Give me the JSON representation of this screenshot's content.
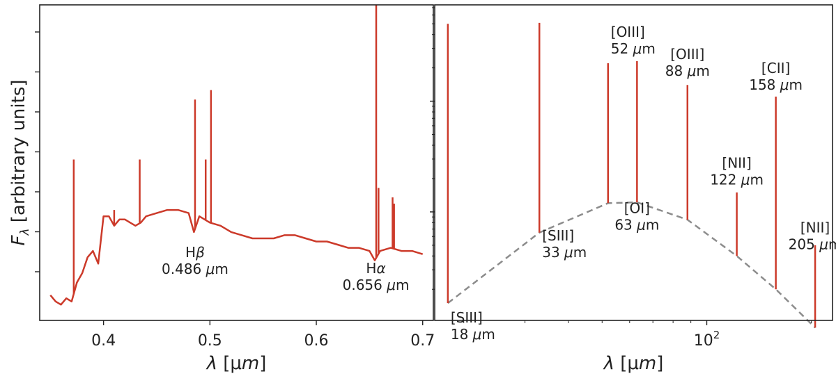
{
  "colors": {
    "spectrum": "#cc3a2a",
    "continuum_dashed": "#8c8c8c",
    "frame": "#222222"
  },
  "chart_data": [
    {
      "type": "line",
      "panel": "left",
      "ylabel": "Fλ [arbitrary units]",
      "xlabel": "λ [μm]",
      "xlim": [
        0.34,
        0.71
      ],
      "ylim": [
        0,
        1
      ],
      "y_tick_labels_shown": false,
      "x_ticks": [
        0.4,
        0.5,
        0.6,
        0.7
      ],
      "x_tick_labels": [
        "0.4",
        "0.5",
        "0.6",
        "0.7"
      ],
      "continuum": {
        "x": [
          0.35,
          0.355,
          0.36,
          0.365,
          0.37,
          0.375,
          0.38,
          0.385,
          0.39,
          0.395,
          0.4,
          0.405,
          0.41,
          0.415,
          0.42,
          0.425,
          0.43,
          0.435,
          0.44,
          0.45,
          0.46,
          0.47,
          0.48,
          0.485,
          0.49,
          0.5,
          0.51,
          0.52,
          0.53,
          0.54,
          0.55,
          0.56,
          0.57,
          0.58,
          0.59,
          0.6,
          0.61,
          0.62,
          0.63,
          0.64,
          0.65,
          0.655,
          0.66,
          0.67,
          0.68,
          0.69,
          0.7
        ],
        "y": [
          0.08,
          0.06,
          0.05,
          0.07,
          0.06,
          0.12,
          0.15,
          0.2,
          0.22,
          0.18,
          0.33,
          0.33,
          0.3,
          0.32,
          0.32,
          0.31,
          0.3,
          0.31,
          0.33,
          0.34,
          0.35,
          0.35,
          0.34,
          0.28,
          0.33,
          0.31,
          0.3,
          0.28,
          0.27,
          0.26,
          0.26,
          0.26,
          0.27,
          0.27,
          0.26,
          0.25,
          0.25,
          0.24,
          0.23,
          0.23,
          0.22,
          0.19,
          0.22,
          0.23,
          0.22,
          0.22,
          0.21
        ]
      },
      "emission_lines": [
        {
          "x": 0.372,
          "peak": 0.51
        },
        {
          "x": 0.41,
          "peak": 0.35
        },
        {
          "x": 0.434,
          "peak": 0.51
        },
        {
          "x": 0.486,
          "peak": 0.7
        },
        {
          "x": 0.496,
          "peak": 0.51
        },
        {
          "x": 0.501,
          "peak": 0.73
        },
        {
          "x": 0.6563,
          "peak": 1.0
        },
        {
          "x": 0.6585,
          "peak": 0.42
        },
        {
          "x": 0.6717,
          "peak": 0.39
        },
        {
          "x": 0.6731,
          "peak": 0.37
        }
      ],
      "annotations": [
        {
          "x": 0.486,
          "y": 0.2,
          "lines": [
            "Hβ",
            "0.486 μm"
          ]
        },
        {
          "x": 0.656,
          "y": 0.15,
          "lines": [
            "Hα",
            "0.656 μm"
          ]
        }
      ]
    },
    {
      "type": "line",
      "panel": "right",
      "xscale": "log",
      "xlabel": "λ [μm]",
      "xlim": [
        16.5,
        230
      ],
      "yscale": "log",
      "ylim_decades": [
        -0.98,
        1.87
      ],
      "y_tick_labels_shown": false,
      "x_ticks": [
        100
      ],
      "x_tick_labels": [
        "10²"
      ],
      "continuum": {
        "x": [
          18,
          33,
          52,
          63,
          88,
          122,
          158,
          205
        ],
        "y": [
          0.15,
          0.65,
          1.2,
          1.22,
          0.85,
          0.4,
          0.2,
          0.09
        ]
      },
      "emission_lines": [
        {
          "x": 18,
          "peak": 50
        },
        {
          "x": 33,
          "peak": 51
        },
        {
          "x": 52,
          "peak": 22
        },
        {
          "x": 63,
          "peak": 23
        },
        {
          "x": 88,
          "peak": 14
        },
        {
          "x": 122,
          "peak": 1.5
        },
        {
          "x": 158,
          "peak": 11
        },
        {
          "x": 205,
          "peak": 0.5
        }
      ],
      "annotations": [
        {
          "x": 18,
          "y": 0.1,
          "lines": [
            "[SIII]",
            "18 μm"
          ],
          "anchor": "start"
        },
        {
          "x": 33,
          "y": 0.55,
          "lines": [
            "[SIII]",
            "33 μm"
          ],
          "anchor": "start"
        },
        {
          "x": 52,
          "y": 38,
          "lines": [
            "[OIII]",
            "52 μm"
          ],
          "anchor": "start"
        },
        {
          "x": 63,
          "y": 0.98,
          "lines": [
            "[OI]",
            "63 μm"
          ],
          "anchor": "middle"
        },
        {
          "x": 88,
          "y": 24,
          "lines": [
            "[OIII]",
            "88 μm"
          ],
          "anchor": "middle"
        },
        {
          "x": 122,
          "y": 2.5,
          "lines": [
            "[NII]",
            "122 μm"
          ],
          "anchor": "middle"
        },
        {
          "x": 158,
          "y": 18,
          "lines": [
            "[CII]",
            "158 μm"
          ],
          "anchor": "middle"
        },
        {
          "x": 205,
          "y": 0.65,
          "lines": [
            "[NII]",
            "205 μm"
          ],
          "anchor": "middle"
        }
      ]
    }
  ]
}
